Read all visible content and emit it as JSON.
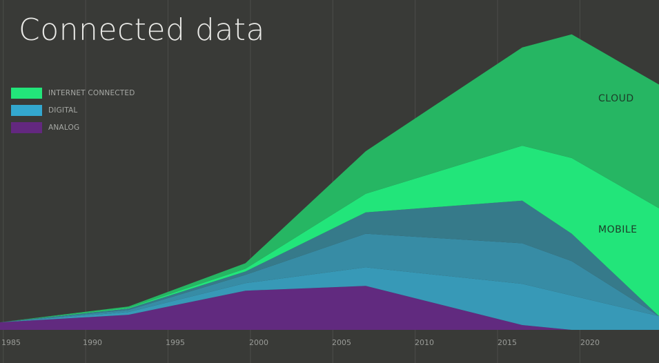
{
  "chart_data": {
    "type": "area",
    "stacked": true,
    "title": "Connected data",
    "xlabel": "",
    "ylabel": "",
    "x": [
      1984.8,
      1992.6,
      1999.7,
      2007.0,
      2016.5,
      2019.5,
      2024.8
    ],
    "xlim": [
      1984.8,
      2024.8
    ],
    "ylim": [
      0,
      480
    ],
    "x_ticks": [
      "1985",
      "1990",
      "1995",
      "2000",
      "2005",
      "2010",
      "2015",
      "2020"
    ],
    "x_tick_values": [
      1985,
      1990,
      1995,
      2000,
      2005,
      2010,
      2015,
      2020
    ],
    "grid": "vertical",
    "legend_position": "top-left",
    "legend": [
      {
        "label": "INTERNET CONNECTED",
        "color": "#22e57a"
      },
      {
        "label": "DIGITAL",
        "color": "#33a8cf"
      },
      {
        "label": "ANALOG",
        "color": "#63287f"
      }
    ],
    "series": [
      {
        "name": "ANALOG",
        "color": "#612a7f",
        "values": [
          11,
          22,
          57,
          64,
          7,
          0,
          0
        ]
      },
      {
        "name": "DIGITAL",
        "color": "#3799b7",
        "values": [
          0,
          4,
          11,
          27,
          60,
          50,
          20
        ]
      },
      {
        "name": "DIGITAL",
        "color": "#378ca5",
        "values": [
          0,
          3,
          12,
          49,
          59,
          50,
          0
        ]
      },
      {
        "name": "DIGITAL",
        "color": "#367a8a",
        "values": [
          0,
          2,
          5,
          31,
          62,
          40,
          0
        ]
      },
      {
        "name": "MOBILE",
        "color": "#22e57a",
        "values": [
          0,
          1,
          4,
          27,
          80,
          110,
          157
        ]
      },
      {
        "name": "CLOUD",
        "color": "#26b663",
        "values": [
          0,
          2,
          8,
          62,
          143,
          180,
          180
        ]
      }
    ],
    "annotations": [
      "CLOUD",
      "MOBILE"
    ]
  },
  "background": "#393a37"
}
